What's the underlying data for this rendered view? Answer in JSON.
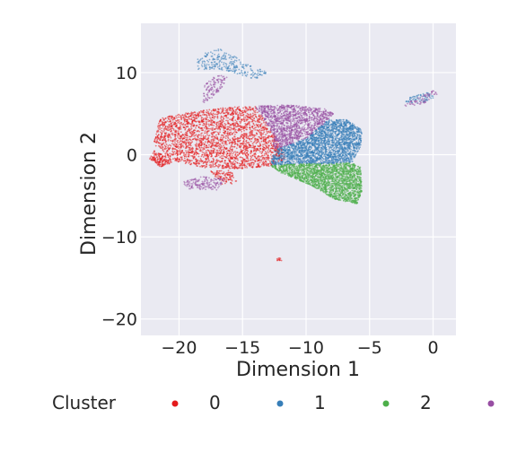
{
  "chart_data": {
    "type": "scatter",
    "title": "",
    "xlabel": "Dimension 1",
    "ylabel": "Dimension 2",
    "xlim": [
      -23,
      1.8
    ],
    "ylim": [
      -22,
      16
    ],
    "xticks": [
      -20,
      -15,
      -10,
      -5,
      0
    ],
    "yticks": [
      -20,
      -10,
      0,
      10
    ],
    "xtick_labels": [
      "−20",
      "−15",
      "−10",
      "−5",
      "0"
    ],
    "ytick_labels": [
      "−20",
      "−10",
      "0",
      "10"
    ],
    "grid": true,
    "background": "#eaeaf2",
    "legend": {
      "title": "Cluster",
      "placement": "bottom",
      "entries": [
        "0",
        "1",
        "2",
        ""
      ]
    },
    "series": [
      {
        "name": "0",
        "color": "#e41a1c",
        "regions": [
          {
            "poly": [
              [
                -21.5,
                4.5
              ],
              [
                -19,
                5.2
              ],
              [
                -16,
                5.8
              ],
              [
                -14,
                5.9
              ],
              [
                -12.5,
                2.5
              ],
              [
                -11.5,
                -0.5
              ],
              [
                -12.8,
                -1.4
              ],
              [
                -15,
                -1.7
              ],
              [
                -18,
                -1.6
              ],
              [
                -20.8,
                -0.6
              ],
              [
                -22,
                1.3
              ]
            ],
            "n": 2600
          },
          {
            "poly": [
              [
                -22,
                0.5
              ],
              [
                -21,
                -0.2
              ],
              [
                -20.5,
                -1
              ],
              [
                -21.5,
                -1.5
              ],
              [
                -22.3,
                -0.5
              ]
            ],
            "n": 150
          },
          {
            "poly": [
              [
                -17.5,
                -2
              ],
              [
                -15.8,
                -1.9
              ],
              [
                -15.4,
                -3.5
              ],
              [
                -16.8,
                -3.6
              ]
            ],
            "n": 100
          },
          {
            "poly": [
              [
                -12.4,
                -12.5
              ],
              [
                -12,
                -12.5
              ],
              [
                -11.9,
                -12.9
              ],
              [
                -12.3,
                -12.9
              ]
            ],
            "n": 12
          }
        ]
      },
      {
        "name": "1",
        "color": "#377eb8",
        "regions": [
          {
            "poly": [
              [
                -12.5,
                0.6
              ],
              [
                -10,
                2
              ],
              [
                -8.3,
                4.2
              ],
              [
                -6.8,
                4.3
              ],
              [
                -5.6,
                3
              ],
              [
                -5.7,
                1
              ],
              [
                -6.4,
                -1
              ],
              [
                -8.3,
                -1.1
              ],
              [
                -10.5,
                -1.1
              ],
              [
                -12.8,
                -1.3
              ]
            ],
            "n": 2400
          },
          {
            "poly": [
              [
                -18.5,
                12
              ],
              [
                -17,
                13
              ],
              [
                -16,
                12.3
              ],
              [
                -14.5,
                11
              ],
              [
                -13,
                10
              ],
              [
                -14,
                9.2
              ],
              [
                -16.5,
                10.3
              ],
              [
                -18.8,
                10.4
              ]
            ],
            "n": 250
          },
          {
            "poly": [
              [
                -1.8,
                7
              ],
              [
                -0.5,
                7.6
              ],
              [
                0.2,
                7
              ],
              [
                -1,
                6.2
              ],
              [
                -2.2,
                6.4
              ]
            ],
            "n": 70
          }
        ]
      },
      {
        "name": "2",
        "color": "#4daf4a",
        "regions": [
          {
            "poly": [
              [
                -12.8,
                -1.3
              ],
              [
                -10.5,
                -1.1
              ],
              [
                -8.3,
                -1.1
              ],
              [
                -6.4,
                -1
              ],
              [
                -5.7,
                -1.5
              ],
              [
                -5.6,
                -4.5
              ],
              [
                -6,
                -6
              ],
              [
                -7.8,
                -5.4
              ],
              [
                -9.5,
                -3.8
              ],
              [
                -12,
                -2.2
              ]
            ],
            "n": 2100
          }
        ]
      },
      {
        "name": "",
        "color": "#984ea3",
        "regions": [
          {
            "poly": [
              [
                -14,
                5.9
              ],
              [
                -11.5,
                6.1
              ],
              [
                -8.5,
                5.6
              ],
              [
                -7.8,
                5
              ],
              [
                -8.3,
                4.2
              ],
              [
                -10,
                2
              ],
              [
                -12.5,
                0.6
              ],
              [
                -12.7,
                2.8
              ]
            ],
            "n": 1300
          },
          {
            "poly": [
              [
                -18,
                8.5
              ],
              [
                -17,
                9.8
              ],
              [
                -16.2,
                9.4
              ],
              [
                -16.8,
                7.5
              ],
              [
                -18.2,
                6.2
              ]
            ],
            "n": 120
          },
          {
            "poly": [
              [
                -19.8,
                -3.3
              ],
              [
                -18,
                -2.6
              ],
              [
                -16.4,
                -3
              ],
              [
                -17,
                -4.3
              ],
              [
                -19.2,
                -4.2
              ]
            ],
            "n": 160
          },
          {
            "poly": [
              [
                -2.2,
                6.2
              ],
              [
                0,
                7.8
              ],
              [
                0.8,
                7.3
              ],
              [
                -0.6,
                6.3
              ],
              [
                -2.2,
                5.8
              ]
            ],
            "n": 60
          }
        ]
      }
    ]
  }
}
